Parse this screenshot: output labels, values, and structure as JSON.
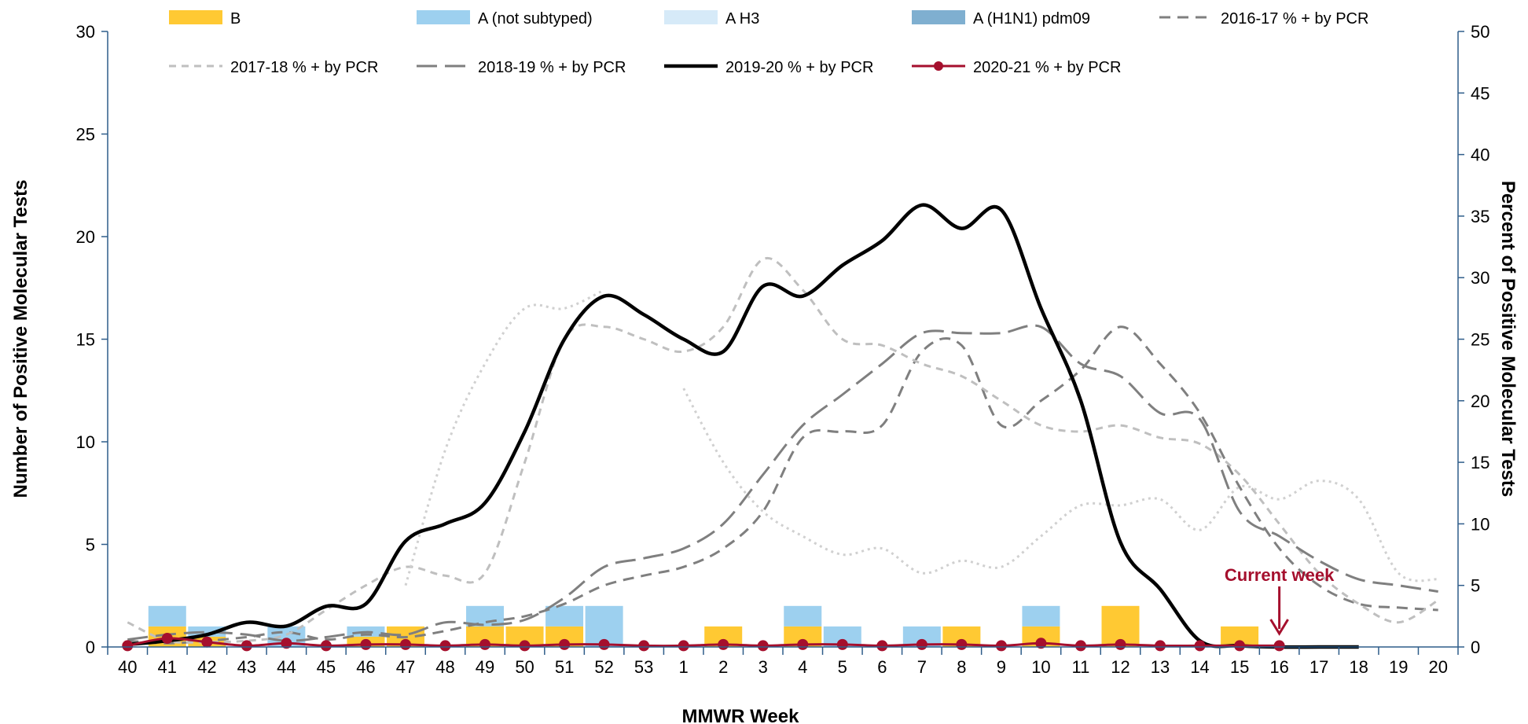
{
  "chart_data": {
    "type": "bar",
    "x_label": "MMWR Week",
    "y_label_left": "Number of Positive Molecular Tests",
    "y_label_right": "Percent of Positive Molecular Tests",
    "ylim_left": [
      0,
      30
    ],
    "yticks_left": [
      "0",
      "5",
      "10",
      "15",
      "20",
      "25",
      "30"
    ],
    "ylim_right": [
      0,
      50
    ],
    "yticks_right": [
      "0",
      "5",
      "10",
      "15",
      "20",
      "25",
      "30",
      "35",
      "40",
      "45",
      "50"
    ],
    "legend_position": "top",
    "categories": [
      "40",
      "41",
      "42",
      "43",
      "44",
      "45",
      "46",
      "47",
      "48",
      "49",
      "50",
      "51",
      "52",
      "53",
      "1",
      "2",
      "3",
      "4",
      "5",
      "6",
      "7",
      "8",
      "9",
      "10",
      "11",
      "12",
      "13",
      "14",
      "15",
      "16",
      "17",
      "18",
      "19",
      "20"
    ],
    "bar_series": [
      {
        "name": "B",
        "color": "#FFC933",
        "values": [
          0,
          1,
          0.5,
          0,
          0,
          0,
          0.5,
          1,
          0,
          1,
          1,
          1,
          0,
          0,
          0,
          1,
          0,
          1,
          0,
          0,
          0,
          1,
          0,
          1,
          0,
          2,
          0,
          0,
          1,
          0,
          0,
          0,
          0,
          0
        ]
      },
      {
        "name": "A (not subtyped)",
        "color": "#9DD0EF",
        "values": [
          0,
          1,
          0.5,
          0,
          1,
          0,
          0.5,
          0,
          0,
          1,
          0,
          1,
          2,
          0,
          0,
          0,
          0,
          1,
          1,
          0,
          1,
          0,
          0,
          1,
          0,
          0,
          0,
          0,
          0,
          0,
          0,
          0,
          0,
          0
        ]
      },
      {
        "name": "A H3",
        "color": "#D6EAF8",
        "values": [
          0,
          0,
          0,
          0,
          0,
          0,
          0,
          0,
          0,
          0,
          0,
          0,
          0,
          0,
          0,
          0,
          0,
          0,
          0,
          0,
          0,
          0,
          0,
          0,
          0,
          0,
          0,
          0,
          0,
          0,
          0,
          0,
          0,
          0
        ]
      },
      {
        "name": "A (H1N1) pdm09",
        "color": "#7FAFD0",
        "values": [
          0,
          0,
          0,
          0,
          0,
          0,
          0,
          0,
          0,
          0,
          0,
          0,
          0,
          0,
          0,
          0,
          0,
          0,
          0,
          0,
          0,
          0,
          0,
          0,
          0,
          0,
          0,
          0,
          0,
          0,
          0,
          0,
          0,
          0
        ]
      }
    ],
    "line_series": [
      {
        "name": "2016-17 % + by PCR",
        "color": "#7F7F7F",
        "dash": "14 9",
        "width": 3,
        "values": [
          0.5,
          0.3,
          0.5,
          0.8,
          1.2,
          0.6,
          1.0,
          0.8,
          1.3,
          2.0,
          2.5,
          3.5,
          5.0,
          5.8,
          6.5,
          8.0,
          11.0,
          17.0,
          17.5,
          18.0,
          24.0,
          24.5,
          18.0,
          20.0,
          22.5,
          26.0,
          23.0,
          19.0,
          13.0,
          8.0,
          5.0,
          3.5,
          3.2,
          3.0
        ]
      },
      {
        "name": "2017-18 % + by PCR",
        "color": "#BFBFBF",
        "dash": "9 7",
        "width": 3,
        "values": [
          2.0,
          0.5,
          0.4,
          0.5,
          1.0,
          3.0,
          5.0,
          6.5,
          5.8,
          6.0,
          15.0,
          25.0,
          26.0,
          25.0,
          24.0,
          26.0,
          31.5,
          29.0,
          25.0,
          24.5,
          23.0,
          22.0,
          20.0,
          18.0,
          17.5,
          18.0,
          17.0,
          16.5,
          14.0,
          10.0,
          6.0,
          3.5,
          2.0,
          3.8
        ]
      },
      {
        "name": "2018-19 % + by PCR",
        "color": "#7F7F7F",
        "dash": "26 10",
        "width": 3,
        "values": [
          0.6,
          1.0,
          1.2,
          1.0,
          0.5,
          0.8,
          1.2,
          1.0,
          2.0,
          1.8,
          2.2,
          4.0,
          6.5,
          7.2,
          8.0,
          10.0,
          14.0,
          18.0,
          20.5,
          23.0,
          25.5,
          25.5,
          25.5,
          26.0,
          23.0,
          22.0,
          19.0,
          18.5,
          11.0,
          9.0,
          7.0,
          5.5,
          5.0,
          4.5
        ]
      },
      {
        "name": "",
        "color": "#D0D0D0",
        "dash": "3 5",
        "width": 3,
        "values": [
          null,
          null,
          null,
          null,
          null,
          null,
          null,
          5.0,
          16.0,
          23.0,
          27.5,
          27.5,
          29.0,
          null,
          21.0,
          15.0,
          11.0,
          9.0,
          7.5,
          8.0,
          6.0,
          7.0,
          6.5,
          9.0,
          11.5,
          11.5,
          12.0,
          9.5,
          13.0,
          12.0,
          13.5,
          12.0,
          6.0,
          5.5
        ]
      },
      {
        "name": "2019-20 % + by PCR",
        "color": "#000000",
        "dash": "",
        "width": 4.5,
        "values": [
          0.2,
          0.5,
          1.0,
          2.0,
          1.7,
          3.3,
          3.5,
          8.6,
          10.0,
          11.7,
          17.5,
          25.0,
          28.5,
          27.0,
          25.0,
          24.0,
          29.3,
          28.5,
          31.0,
          33.0,
          35.9,
          34.0,
          35.5,
          27.5,
          20.0,
          8.5,
          4.7,
          0.5,
          0.1,
          0.0,
          0.0,
          0.0,
          null,
          null
        ]
      },
      {
        "name": "2020-21 % + by PCR",
        "color": "#A50F2D",
        "dash": "",
        "width": 3,
        "markers": true,
        "values": [
          0.1,
          0.7,
          0.4,
          0.1,
          0.3,
          0.1,
          0.2,
          0.2,
          0.1,
          0.2,
          0.1,
          0.2,
          0.2,
          0.1,
          0.1,
          0.2,
          0.1,
          0.2,
          0.2,
          0.1,
          0.2,
          0.2,
          0.1,
          0.3,
          0.1,
          0.2,
          0.1,
          0.1,
          0.1,
          0.1,
          null,
          null,
          null,
          null
        ]
      }
    ],
    "annotations": [
      {
        "text": "Current week",
        "category": "16",
        "color": "#A50F2D"
      }
    ]
  }
}
